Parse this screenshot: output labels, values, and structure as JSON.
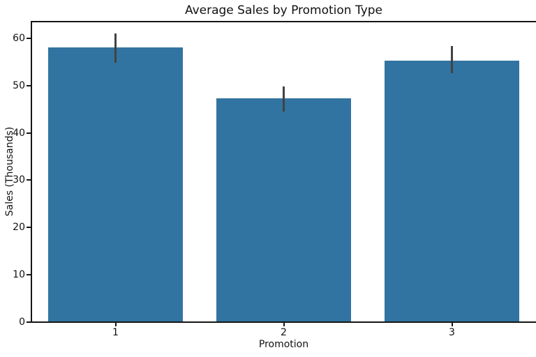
{
  "chart_data": {
    "type": "bar",
    "title": "Average Sales by Promotion Type",
    "xlabel": "Promotion",
    "ylabel": "Sales (Thousands)",
    "categories": [
      "1",
      "2",
      "3"
    ],
    "values": [
      58.1,
      47.3,
      55.2
    ],
    "error_bars_low": [
      54.8,
      44.5,
      52.6
    ],
    "error_bars_high": [
      61.0,
      49.8,
      58.4
    ],
    "yticks": [
      0,
      10,
      20,
      30,
      40,
      50,
      60
    ],
    "ylim": [
      0,
      63.5
    ],
    "bar_color": "#3274a1",
    "error_bar_color": "#424242",
    "grid": false,
    "legend_visible": false
  }
}
